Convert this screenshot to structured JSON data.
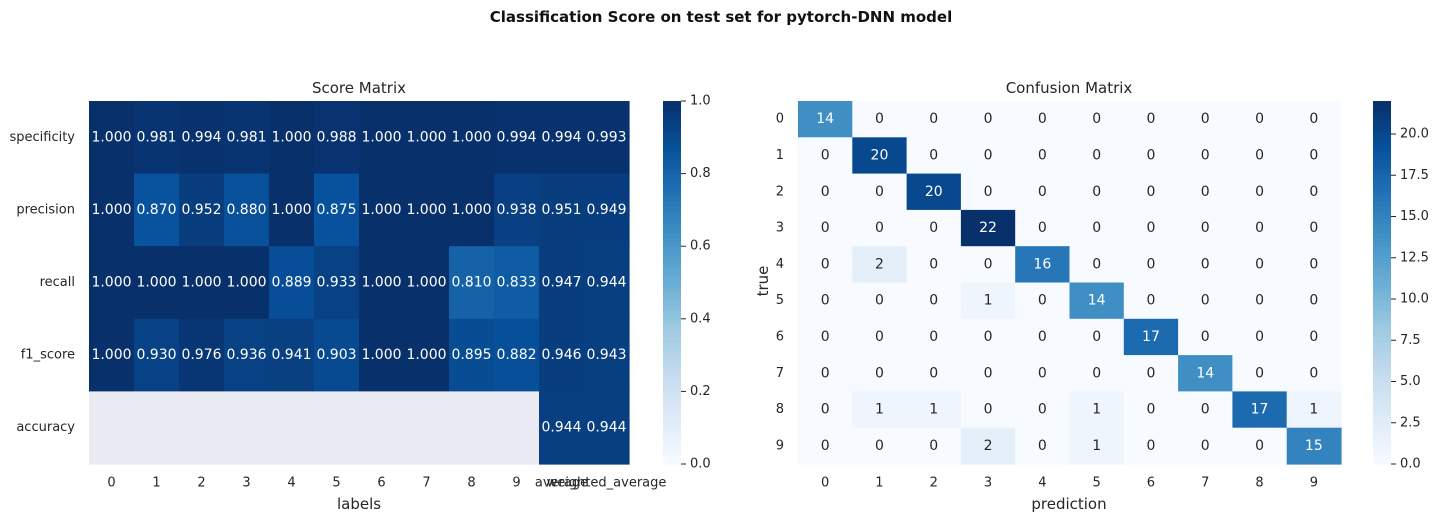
{
  "figure": {
    "title": "Classification Score on test set for pytorch-DNN model"
  },
  "chart_data": [
    {
      "type": "heatmap",
      "title": "Score Matrix",
      "xlabel": "labels",
      "ylabel": "",
      "x_categories": [
        "0",
        "1",
        "2",
        "3",
        "4",
        "5",
        "6",
        "7",
        "8",
        "9",
        "average",
        "weighted_average"
      ],
      "y_categories": [
        "specificity",
        "precision",
        "recall",
        "f1_score",
        "accuracy"
      ],
      "values": [
        [
          1.0,
          0.981,
          0.994,
          0.981,
          1.0,
          0.988,
          1.0,
          1.0,
          1.0,
          0.994,
          0.994,
          0.993
        ],
        [
          1.0,
          0.87,
          0.952,
          0.88,
          1.0,
          0.875,
          1.0,
          1.0,
          1.0,
          0.938,
          0.951,
          0.949
        ],
        [
          1.0,
          1.0,
          1.0,
          1.0,
          0.889,
          0.933,
          1.0,
          1.0,
          0.81,
          0.833,
          0.947,
          0.944
        ],
        [
          1.0,
          0.93,
          0.976,
          0.936,
          0.941,
          0.903,
          1.0,
          1.0,
          0.895,
          0.882,
          0.946,
          0.943
        ],
        [
          null,
          null,
          null,
          null,
          null,
          null,
          null,
          null,
          null,
          null,
          0.944,
          0.944
        ]
      ],
      "value_format": "3 decimals",
      "missing_color": "#eaeaf2",
      "colormap": "Blues",
      "colorbar": {
        "range": [
          0.0,
          1.0
        ],
        "ticks": [
          "0.0",
          "0.2",
          "0.4",
          "0.6",
          "0.8",
          "1.0"
        ]
      }
    },
    {
      "type": "heatmap",
      "title": "Confusion Matrix",
      "xlabel": "prediction",
      "ylabel": "true",
      "x_categories": [
        "0",
        "1",
        "2",
        "3",
        "4",
        "5",
        "6",
        "7",
        "8",
        "9"
      ],
      "y_categories": [
        "0",
        "1",
        "2",
        "3",
        "4",
        "5",
        "6",
        "7",
        "8",
        "9"
      ],
      "values": [
        [
          14,
          0,
          0,
          0,
          0,
          0,
          0,
          0,
          0,
          0
        ],
        [
          0,
          20,
          0,
          0,
          0,
          0,
          0,
          0,
          0,
          0
        ],
        [
          0,
          0,
          20,
          0,
          0,
          0,
          0,
          0,
          0,
          0
        ],
        [
          0,
          0,
          0,
          22,
          0,
          0,
          0,
          0,
          0,
          0
        ],
        [
          0,
          2,
          0,
          0,
          16,
          0,
          0,
          0,
          0,
          0
        ],
        [
          0,
          0,
          0,
          1,
          0,
          14,
          0,
          0,
          0,
          0
        ],
        [
          0,
          0,
          0,
          0,
          0,
          0,
          17,
          0,
          0,
          0
        ],
        [
          0,
          0,
          0,
          0,
          0,
          0,
          0,
          14,
          0,
          0
        ],
        [
          0,
          1,
          1,
          0,
          0,
          1,
          0,
          0,
          17,
          1
        ],
        [
          0,
          0,
          0,
          2,
          0,
          1,
          0,
          0,
          0,
          15
        ]
      ],
      "value_format": "integer",
      "colormap": "Blues",
      "colorbar": {
        "range": [
          0.0,
          22.0
        ],
        "ticks": [
          "0.0",
          "2.5",
          "5.0",
          "7.5",
          "10.0",
          "12.5",
          "15.0",
          "17.5",
          "20.0"
        ]
      }
    }
  ]
}
